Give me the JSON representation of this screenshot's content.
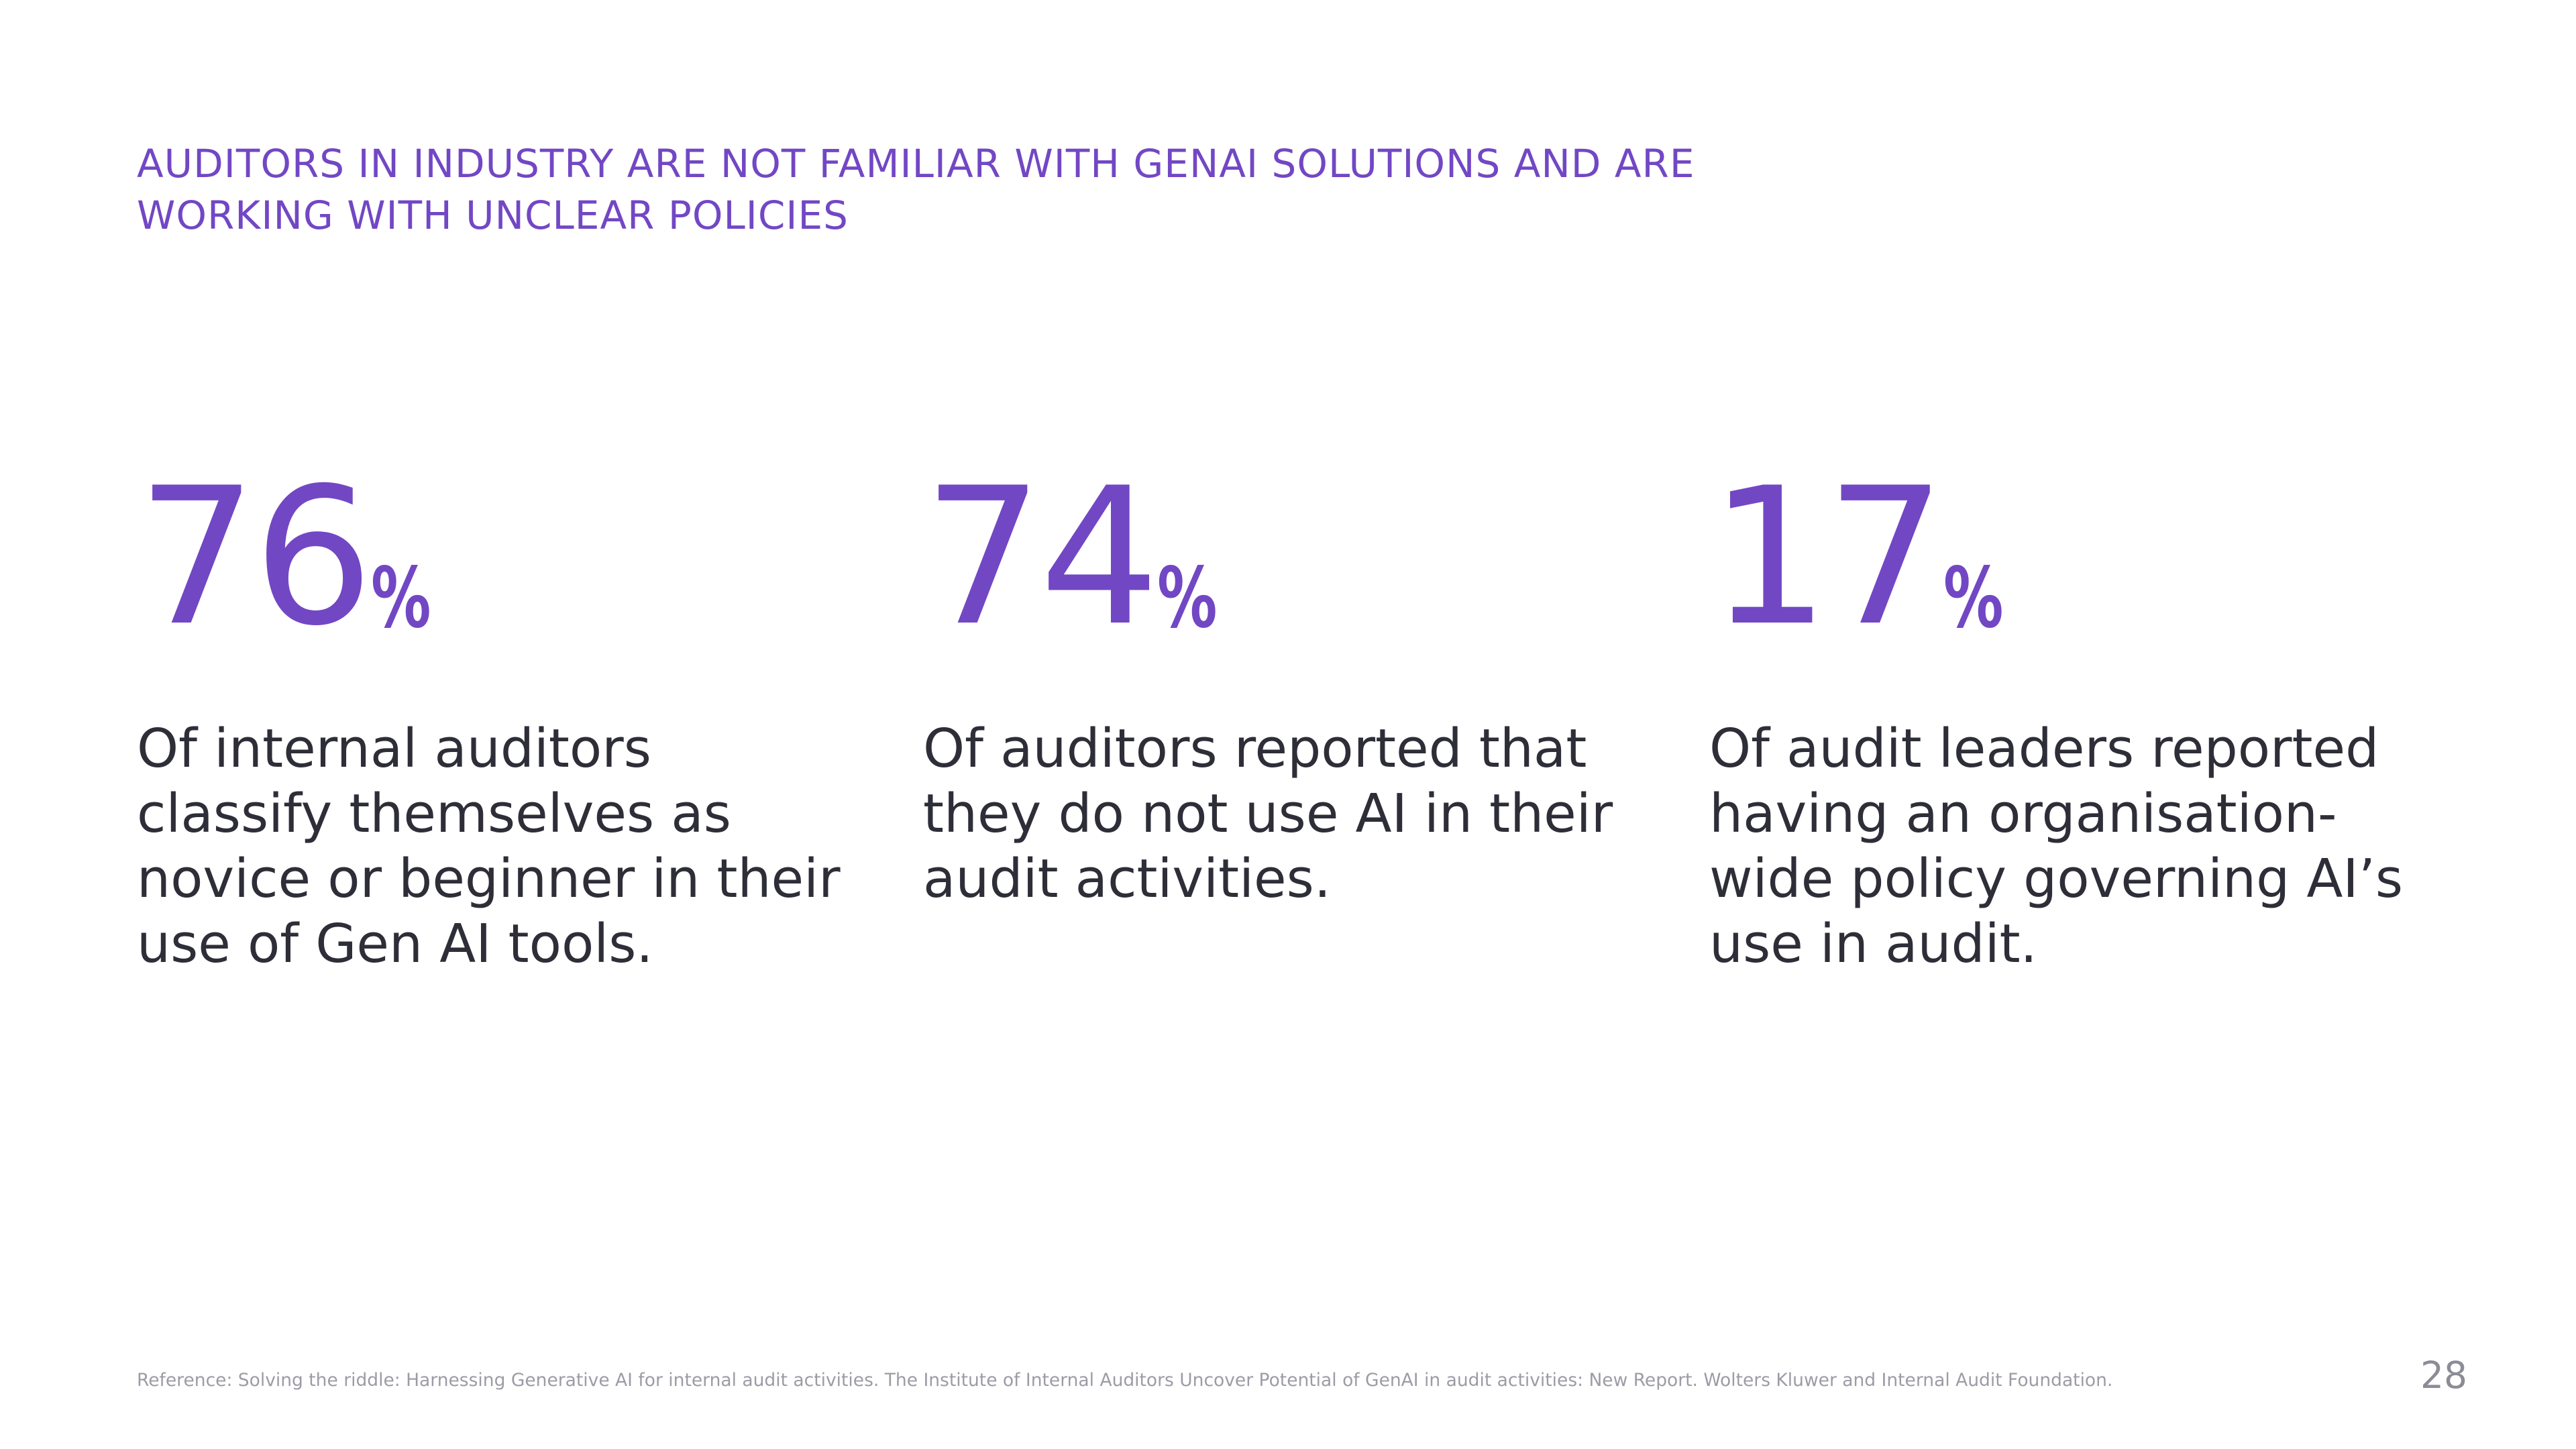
{
  "header": {
    "title_lines": [
      "AUDITORS IN INDUSTRY ARE NOT FAMILIAR WITH GENAI SOLUTIONS AND ARE",
      "WORKING WITH UNCLEAR POLICIES"
    ]
  },
  "stats": [
    {
      "value": "76",
      "unit": "%",
      "description_lines": [
        "Of internal auditors",
        "classify themselves as",
        "novice or beginner in their",
        "use of Gen AI tools."
      ]
    },
    {
      "value": "74",
      "unit": "%",
      "description_lines": [
        "Of auditors reported that",
        "they do not use AI in their",
        "audit activities."
      ]
    },
    {
      "value": "17",
      "unit": "%",
      "description_lines": [
        "Of audit leaders reported",
        "having an organisation-",
        "wide policy governing AI’s",
        "use in audit."
      ]
    }
  ],
  "footer": {
    "reference": "Reference: Solving the riddle: Harnessing Generative AI for internal audit activities. The Institute of Internal Auditors Uncover Potential of GenAI in audit activities: New Report. Wolters Kluwer and Internal Audit Foundation.",
    "page_number": "28"
  },
  "colors": {
    "accent": "#7247C4",
    "body_text": "#2E2E38",
    "footnote_text": "#9C9CA6",
    "background": "#FFFFFF"
  }
}
